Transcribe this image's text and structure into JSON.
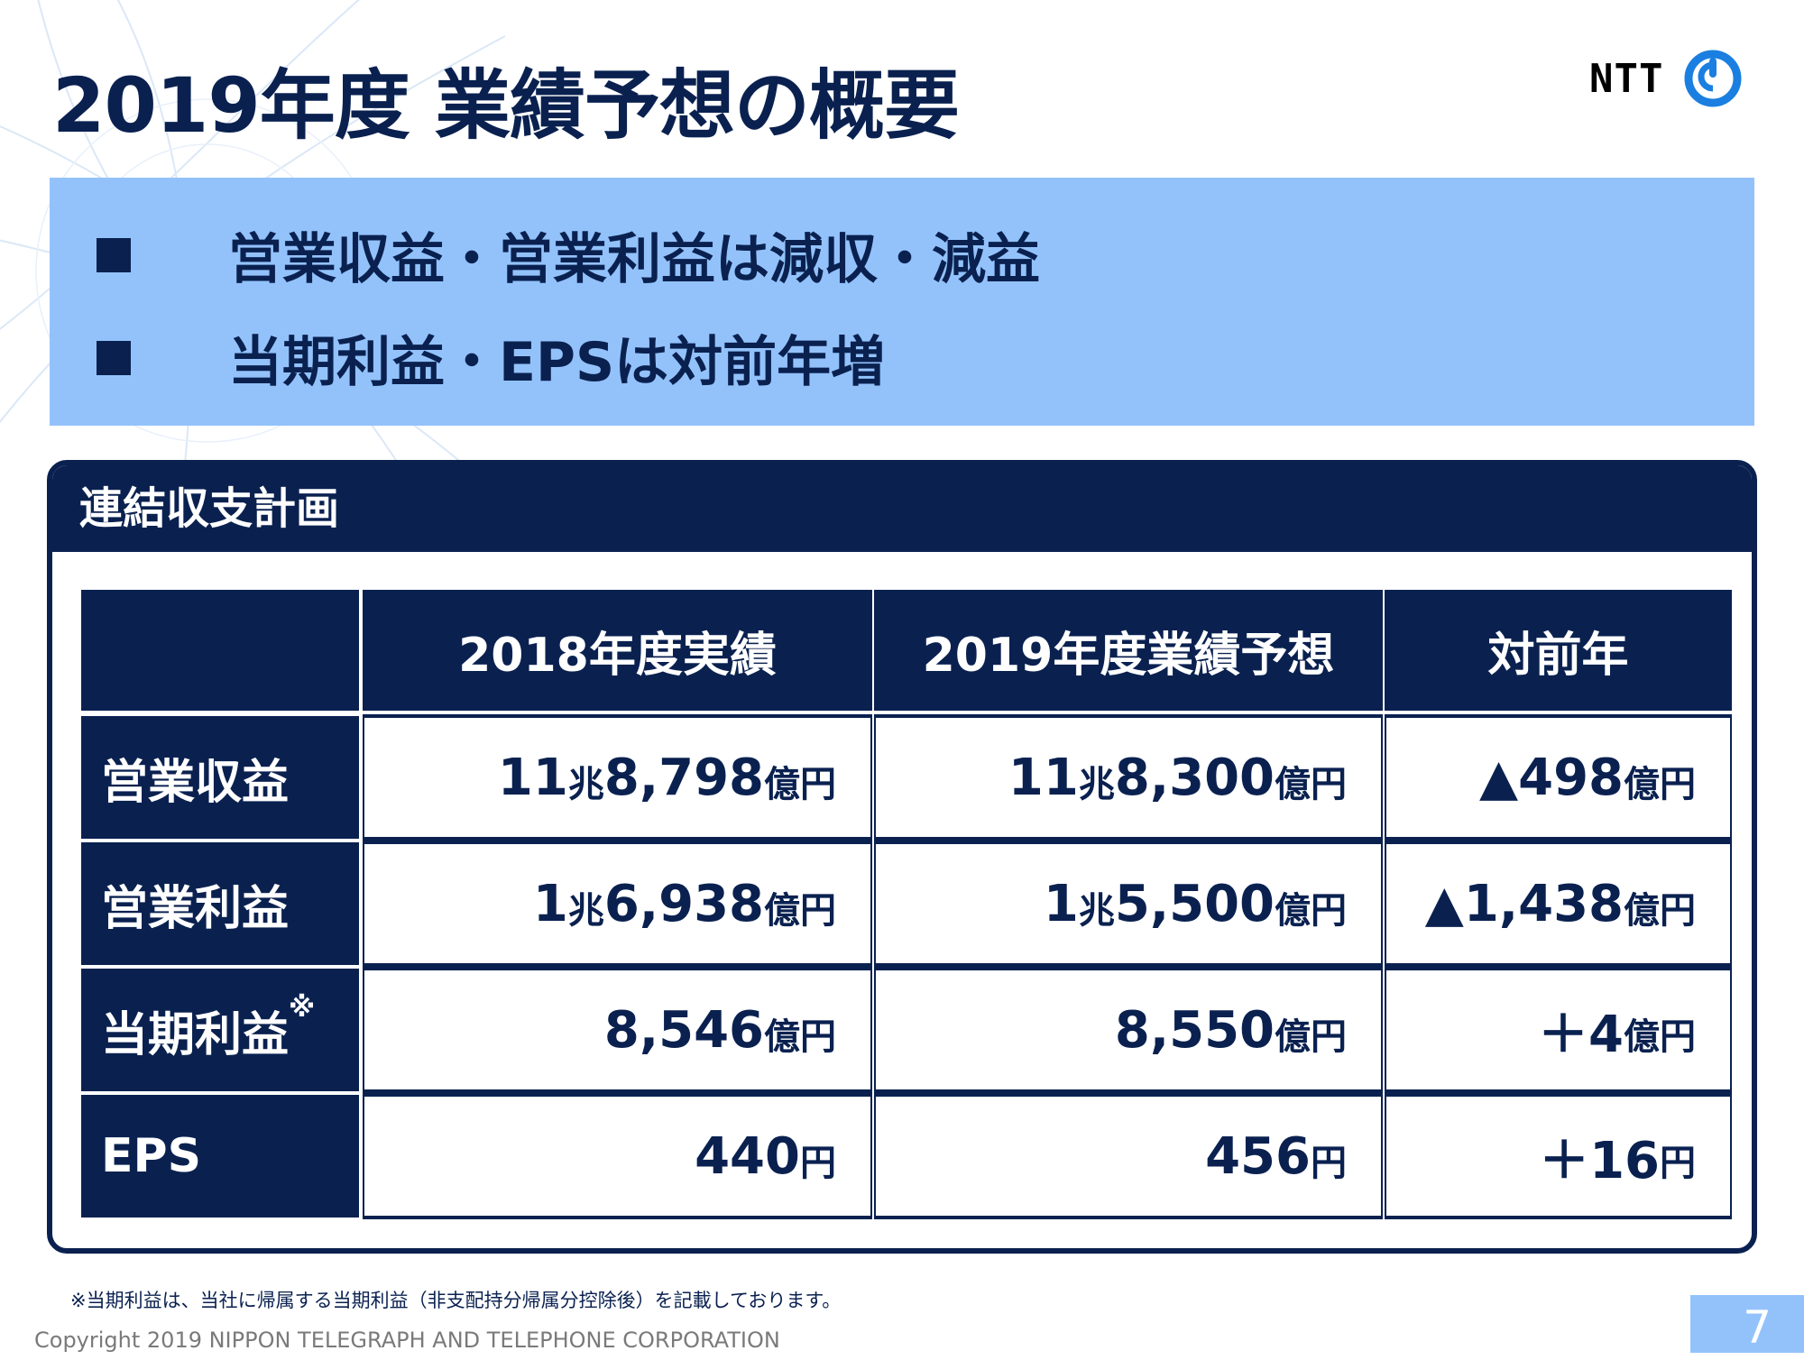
{
  "title": "2019年度 業績予想の概要",
  "logo": {
    "text": "NTT",
    "icon": "ntt-logo-mark-icon"
  },
  "summary": {
    "bullet_icon": "square-bullet-icon",
    "lines": [
      "営業収益・営業利益は減収・減益",
      "当期利益・EPSは対前年増"
    ]
  },
  "panel": {
    "title": "連結収支計画",
    "columns": [
      "",
      "2018年度実績",
      "2019年度業績予想",
      "対前年"
    ],
    "rows": [
      {
        "label": "営業収益",
        "label_sup": "",
        "values": [
          [
            "11",
            "兆",
            " 8,798",
            "億円"
          ],
          [
            "11",
            "兆",
            " 8,300",
            "億円"
          ],
          [
            "▲498",
            "",
            "",
            "億円"
          ]
        ]
      },
      {
        "label": "営業利益",
        "label_sup": "",
        "values": [
          [
            "1",
            "兆",
            " 6,938",
            "億円"
          ],
          [
            "1",
            "兆",
            " 5,500",
            "億円"
          ],
          [
            "▲1,438",
            "",
            "",
            "億円"
          ]
        ]
      },
      {
        "label": "当期利益",
        "label_sup": "※",
        "values": [
          [
            "8,546",
            "",
            "",
            "億円"
          ],
          [
            "8,550",
            "",
            "",
            "億円"
          ],
          [
            "＋4",
            "",
            "",
            "億円"
          ]
        ]
      },
      {
        "label": "EPS",
        "label_sup": "",
        "values": [
          [
            "440",
            "",
            "",
            "円"
          ],
          [
            "456",
            "",
            "",
            "円"
          ],
          [
            "＋16",
            "",
            "",
            "円"
          ]
        ]
      }
    ]
  },
  "footnote": "※当期利益は、当社に帰属する当期利益（非支配持分帰属分控除後）を記載しております。",
  "copyright": "Copyright 2019 NIPPON TELEGRAPH AND TELEPHONE CORPORATION",
  "page_number": "7",
  "colors": {
    "navy": "#0a2150",
    "light_blue": "#93c2fb",
    "footer_gray": "#7a7a7a"
  }
}
